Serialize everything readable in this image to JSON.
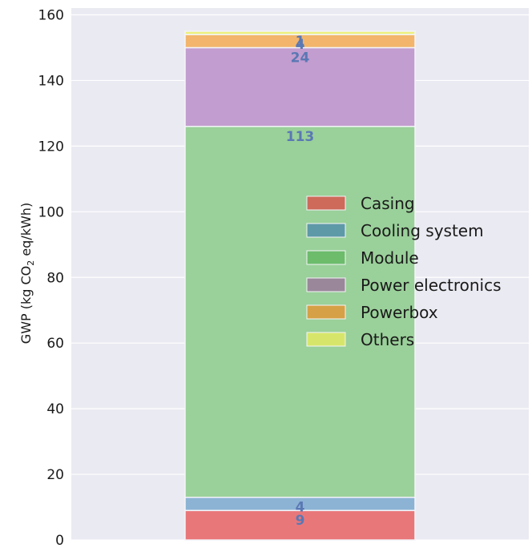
{
  "chart_data": {
    "type": "bar",
    "stacked": true,
    "categories": [
      ""
    ],
    "ylabel_parts": [
      "GWP (kg CO",
      "2",
      " eq/kWh)"
    ],
    "ylim": [
      0,
      160
    ],
    "yticks": [
      "0",
      "20",
      "40",
      "60",
      "80",
      "100",
      "120",
      "140",
      "160"
    ],
    "grid": true,
    "legend_position": "center-right",
    "series": [
      {
        "name": "Casing",
        "values": [
          9
        ],
        "label": "9",
        "color": "#e8777a",
        "legend_color": "#cd6a5a"
      },
      {
        "name": "Cooling system",
        "values": [
          4
        ],
        "label": "4",
        "color": "#8cb3d4",
        "legend_color": "#5e99a8"
      },
      {
        "name": "Module",
        "values": [
          113
        ],
        "label": "113",
        "color": "#9ad09a",
        "legend_color": "#6cbc6c"
      },
      {
        "name": "Power electronics",
        "values": [
          24
        ],
        "label": "24",
        "color": "#c29dcf",
        "legend_color": "#9a879a"
      },
      {
        "name": "Powerbox",
        "values": [
          4
        ],
        "label": "4",
        "color": "#f2b56b",
        "legend_color": "#d6a046"
      },
      {
        "name": "Others",
        "values": [
          1
        ],
        "label": "1",
        "color": "#eef07e",
        "legend_color": "#d7e66a"
      }
    ]
  }
}
